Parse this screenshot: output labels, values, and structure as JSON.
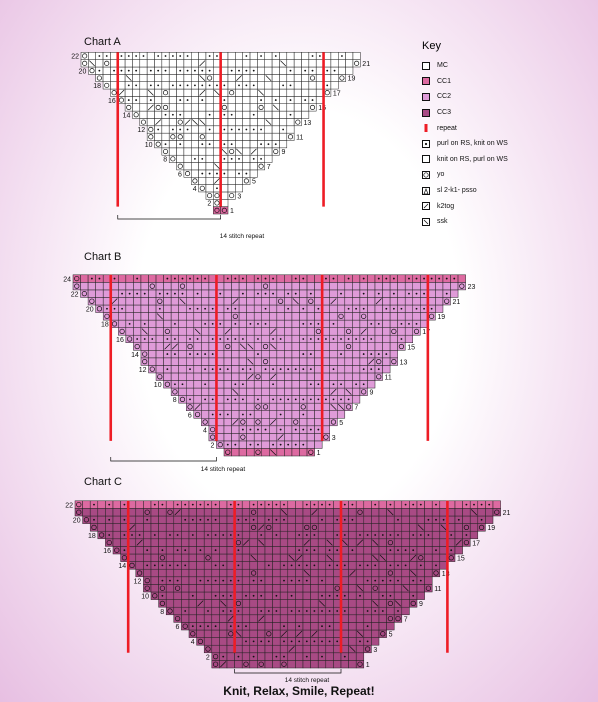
{
  "colors": {
    "MC": "#ffffff",
    "CC1": "#dd6aa1",
    "CC2": "#df9bd8",
    "CC3": "#a84a84",
    "repeat": "#ee1c25"
  },
  "charts": [
    {
      "id": "A",
      "title": "Chart A",
      "rows": 22,
      "stitches": 38,
      "colors": [
        "CC1",
        "MC",
        "MC",
        "MC",
        "MC",
        "MC",
        "MC",
        "MC",
        "MC",
        "MC",
        "MC",
        "MC",
        "MC",
        "MC",
        "MC",
        "MC",
        "MC",
        "MC",
        "MC",
        "MC",
        "MC",
        "MC"
      ],
      "repeat_label": "14 stitch repeat"
    },
    {
      "id": "B",
      "title": "Chart B",
      "rows": 24,
      "stitches": 52,
      "colors": [
        "CC1",
        "CC2",
        "CC2",
        "CC2",
        "CC2",
        "CC2",
        "CC2",
        "CC2",
        "CC2",
        "CC2",
        "CC2",
        "CC2",
        "CC2",
        "CC2",
        "CC2",
        "CC2",
        "CC2",
        "CC2",
        "CC2",
        "CC2",
        "CC2",
        "CC2",
        "CC2",
        "CC1"
      ],
      "repeat_label": "14 stitch repeat"
    },
    {
      "id": "C",
      "title": "Chart C",
      "rows": 22,
      "stitches": 56,
      "colors": [
        "CC3",
        "CC3",
        "CC3",
        "CC3",
        "CC3",
        "CC3",
        "CC3",
        "CC3",
        "CC3",
        "CC3",
        "CC3",
        "CC3",
        "CC3",
        "CC3",
        "CC3",
        "CC3",
        "CC3",
        "CC3",
        "CC3",
        "CC3",
        "CC3",
        "CC1"
      ],
      "repeat_label": "14 stitch repeat"
    }
  ],
  "key": {
    "title": "Key",
    "items": [
      {
        "type": "MC",
        "label": "MC"
      },
      {
        "type": "CC1",
        "label": "CC1"
      },
      {
        "type": "CC2",
        "label": "CC2"
      },
      {
        "type": "CC3",
        "label": "CC3"
      },
      {
        "type": "repeat",
        "label": "repeat"
      },
      {
        "type": "purl",
        "label": "purl on RS, knit on WS"
      },
      {
        "type": "knit",
        "label": "knit on RS, purl on WS"
      },
      {
        "type": "yo",
        "label": "yo"
      },
      {
        "type": "sk2p",
        "label": "sl 2-k1- psso"
      },
      {
        "type": "k2tog",
        "label": "k2tog"
      },
      {
        "type": "ssk",
        "label": "ssk"
      }
    ]
  },
  "footer": "Knit, Relax, Smile, Repeat!"
}
